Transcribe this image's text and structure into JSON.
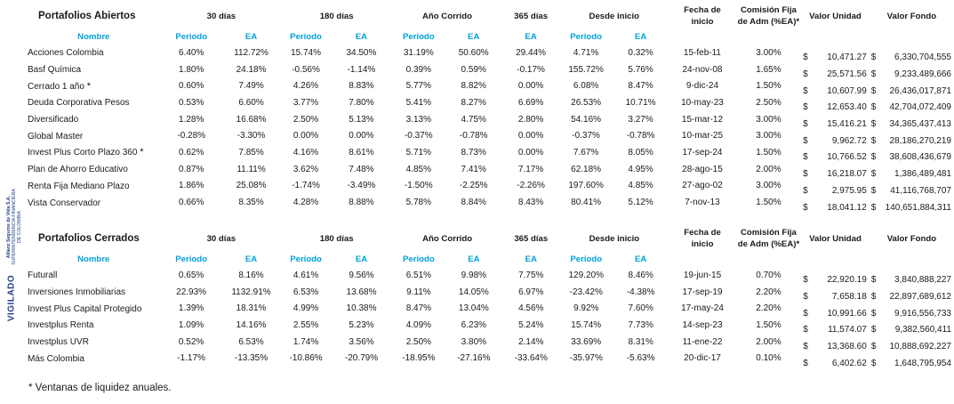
{
  "side_note": {
    "company": "Allianz Seguros de Vida S.A.",
    "regulator_line1": "SUPERINTENDENCIA FINANCIERA",
    "regulator_line2": "DE COLOMBIA",
    "vigilado": "VIGILADO"
  },
  "headers": {
    "d30": "30 días",
    "d180": "180 días",
    "ytd": "Año Corrido",
    "d365": "365 días",
    "inception": "Desde inicio",
    "start_date_l1": "Fecha de",
    "start_date_l2": "inicio",
    "fee_l1": "Comisión Fija",
    "fee_l2": "de Adm (%EA)*",
    "unit_value": "Valor Unidad",
    "fund_value": "Valor Fondo",
    "name": "Nombre",
    "period": "Periodo",
    "ea": "EA"
  },
  "open": {
    "title": "Portafolios Abiertos",
    "rows": [
      {
        "name": "Acciones Colombia",
        "star": "",
        "p30": "6.40%",
        "e30": "112.72%",
        "p180": "15.74%",
        "e180": "34.50%",
        "pytd": "31.19%",
        "eytd": "50.60%",
        "e365": "29.44%",
        "pin": "4.71%",
        "ein": "0.32%",
        "date": "15-feb-11",
        "fee": "3.00%",
        "cur1": "$",
        "unit": "10,471.27",
        "cur2": "$",
        "fund": "6,330,704,555"
      },
      {
        "name": "Basf Química",
        "star": "",
        "p30": "1.80%",
        "e30": "24.18%",
        "p180": "-0.56%",
        "e180": "-1.14%",
        "pytd": "0.39%",
        "eytd": "0.59%",
        "e365": "-0.17%",
        "pin": "155.72%",
        "ein": "5.76%",
        "date": "24-nov-08",
        "fee": "1.65%",
        "cur1": "$",
        "unit": "25,571.56",
        "cur2": "$",
        "fund": "9,233,489,666"
      },
      {
        "name": "Cerrado 1 año",
        "star": "*",
        "p30": "0.60%",
        "e30": "7.49%",
        "p180": "4.26%",
        "e180": "8.83%",
        "pytd": "5.77%",
        "eytd": "8.82%",
        "e365": "0.00%",
        "pin": "6.08%",
        "ein": "8.47%",
        "date": "9-dic-24",
        "fee": "1.50%",
        "cur1": "$",
        "unit": "10,607.99",
        "cur2": "$",
        "fund": "26,436,017,871"
      },
      {
        "name": "Deuda Corporativa Pesos",
        "star": "",
        "p30": "0.53%",
        "e30": "6.60%",
        "p180": "3.77%",
        "e180": "7.80%",
        "pytd": "5.41%",
        "eytd": "8.27%",
        "e365": "6.69%",
        "pin": "26.53%",
        "ein": "10.71%",
        "date": "10-may-23",
        "fee": "2.50%",
        "cur1": "$",
        "unit": "12,653.40",
        "cur2": "$",
        "fund": "42,704,072,409"
      },
      {
        "name": "Diversificado",
        "star": "",
        "p30": "1.28%",
        "e30": "16.68%",
        "p180": "2.50%",
        "e180": "5.13%",
        "pytd": "3.13%",
        "eytd": "4.75%",
        "e365": "2.80%",
        "pin": "54.16%",
        "ein": "3.27%",
        "date": "15-mar-12",
        "fee": "3.00%",
        "cur1": "$",
        "unit": "15,416.21",
        "cur2": "$",
        "fund": "34,365,437,413"
      },
      {
        "name": "Global Master",
        "star": "",
        "p30": "-0.28%",
        "e30": "-3.30%",
        "p180": "0.00%",
        "e180": "0.00%",
        "pytd": "-0.37%",
        "eytd": "-0.78%",
        "e365": "0.00%",
        "pin": "-0.37%",
        "ein": "-0.78%",
        "date": "10-mar-25",
        "fee": "3.00%",
        "cur1": "$",
        "unit": "9,962.72",
        "cur2": "$",
        "fund": "28,186,270,219"
      },
      {
        "name": "Invest Plus Corto Plazo 360",
        "star": "*",
        "p30": "0.62%",
        "e30": "7.85%",
        "p180": "4.16%",
        "e180": "8.61%",
        "pytd": "5.71%",
        "eytd": "8.73%",
        "e365": "0.00%",
        "pin": "7.67%",
        "ein": "8.05%",
        "date": "17-sep-24",
        "fee": "1.50%",
        "cur1": "$",
        "unit": "10,766.52",
        "cur2": "$",
        "fund": "38,608,436,679"
      },
      {
        "name": "Plan de Ahorro Educativo",
        "star": "",
        "p30": "0.87%",
        "e30": "11.11%",
        "p180": "3.62%",
        "e180": "7.48%",
        "pytd": "4.85%",
        "eytd": "7.41%",
        "e365": "7.17%",
        "pin": "62.18%",
        "ein": "4.95%",
        "date": "28-ago-15",
        "fee": "2.00%",
        "cur1": "$",
        "unit": "16,218.07",
        "cur2": "$",
        "fund": "1,386,489,481"
      },
      {
        "name": "Renta Fija Mediano Plazo",
        "star": "",
        "p30": "1.86%",
        "e30": "25.08%",
        "p180": "-1.74%",
        "e180": "-3.49%",
        "pytd": "-1.50%",
        "eytd": "-2.25%",
        "e365": "-2.26%",
        "pin": "197.60%",
        "ein": "4.85%",
        "date": "27-ago-02",
        "fee": "3.00%",
        "cur1": "$",
        "unit": "2,975.95",
        "cur2": "$",
        "fund": "41,116,768,707"
      },
      {
        "name": "Vista Conservador",
        "star": "",
        "p30": "0.66%",
        "e30": "8.35%",
        "p180": "4.28%",
        "e180": "8.88%",
        "pytd": "5.78%",
        "eytd": "8.84%",
        "e365": "8.43%",
        "pin": "80.41%",
        "ein": "5.12%",
        "date": "7-nov-13",
        "fee": "1.50%",
        "cur1": "$",
        "unit": "18,041.12",
        "cur2": "$",
        "fund": "140,651,884,311"
      }
    ]
  },
  "closed": {
    "title": "Portafolios Cerrados",
    "rows": [
      {
        "name": "Futurall",
        "star": "",
        "p30": "0.65%",
        "e30": "8.16%",
        "p180": "4.61%",
        "e180": "9.56%",
        "pytd": "6.51%",
        "eytd": "9.98%",
        "e365": "7.75%",
        "pin": "129.20%",
        "ein": "8.46%",
        "date": "19-jun-15",
        "fee": "0.70%",
        "cur1": "$",
        "unit": "22,920.19",
        "cur2": "$",
        "fund": "3,840,888,227"
      },
      {
        "name": "Inversiones Inmobiliarias",
        "star": "",
        "p30": "22.93%",
        "e30": "1132.91%",
        "p180": "6.53%",
        "e180": "13.68%",
        "pytd": "9.11%",
        "eytd": "14.05%",
        "e365": "6.97%",
        "pin": "-23.42%",
        "ein": "-4.38%",
        "date": "17-sep-19",
        "fee": "2.20%",
        "cur1": "$",
        "unit": "7,658.18",
        "cur2": "$",
        "fund": "22,897,689,612"
      },
      {
        "name": "Invest Plus Capital Protegido",
        "star": "",
        "p30": "1.39%",
        "e30": "18.31%",
        "p180": "4.99%",
        "e180": "10.38%",
        "pytd": "8.47%",
        "eytd": "13.04%",
        "e365": "4.56%",
        "pin": "9.92%",
        "ein": "7.60%",
        "date": "17-may-24",
        "fee": "2.20%",
        "cur1": "$",
        "unit": "10,991.66",
        "cur2": "$",
        "fund": "9,916,556,733"
      },
      {
        "name": "Investplus Renta",
        "star": "",
        "p30": "1.09%",
        "e30": "14.16%",
        "p180": "2.55%",
        "e180": "5.23%",
        "pytd": "4.09%",
        "eytd": "6.23%",
        "e365": "5.24%",
        "pin": "15.74%",
        "ein": "7.73%",
        "date": "14-sep-23",
        "fee": "1.50%",
        "cur1": "$",
        "unit": "11,574.07",
        "cur2": "$",
        "fund": "9,382,560,411"
      },
      {
        "name": "Investplus UVR",
        "star": "",
        "p30": "0.52%",
        "e30": "6.53%",
        "p180": "1.74%",
        "e180": "3.56%",
        "pytd": "2.50%",
        "eytd": "3.80%",
        "e365": "2.14%",
        "pin": "33.69%",
        "ein": "8.31%",
        "date": "11-ene-22",
        "fee": "2.00%",
        "cur1": "$",
        "unit": "13,368.60",
        "cur2": "$",
        "fund": "10,888,692,227"
      },
      {
        "name": "Más Colombia",
        "star": "",
        "p30": "-1.17%",
        "e30": "-13.35%",
        "p180": "-10.86%",
        "e180": "-20.79%",
        "pytd": "-18.95%",
        "eytd": "-27.16%",
        "e365": "-33.64%",
        "pin": "-35.97%",
        "ein": "-5.63%",
        "date": "20-dic-17",
        "fee": "0.10%",
        "cur1": "$",
        "unit": "6,402.62",
        "cur2": "$",
        "fund": "1,648,795,954"
      }
    ]
  },
  "footnote": "* Ventanas de liquidez anuales."
}
